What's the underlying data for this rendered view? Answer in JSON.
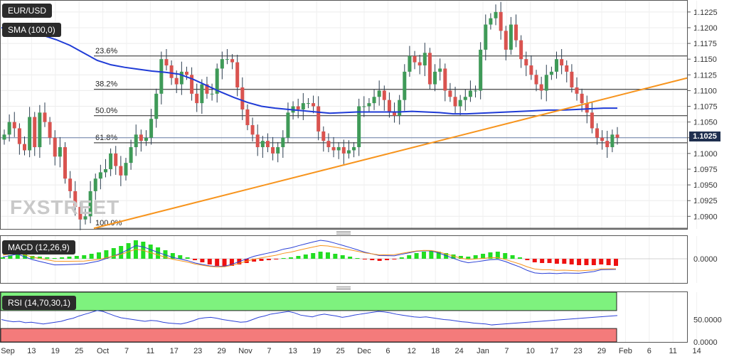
{
  "symbol": "EUR/USD",
  "sma_label": "SMA (100,0)",
  "macd_label": "MACD (12,26,9)",
  "rsi_label": "RSI (14,70,30,1)",
  "watermark": "FXSTREET",
  "current_price": "1.1025",
  "fib_levels": [
    {
      "label": "23.6%",
      "value": 1.1155
    },
    {
      "label": "38.2%",
      "value": 1.1102
    },
    {
      "label": "50.0%",
      "value": 1.106
    },
    {
      "label": "61.8%",
      "value": 1.1017
    },
    {
      "label": "100.0%",
      "value": 1.0881
    }
  ],
  "chart_data": [
    {
      "type": "candlestick",
      "title": "EUR/USD",
      "ylim": [
        1.088,
        1.1235
      ],
      "y_ticks": [
        "1.0900",
        "1.0925",
        "1.0950",
        "1.0975",
        "1.1000",
        "1.1025",
        "1.1050",
        "1.1075",
        "1.1100",
        "1.1125",
        "1.1150",
        "1.1175",
        "1.1200",
        "1.1225"
      ],
      "x_ticks": [
        "Sep",
        "13",
        "19",
        "25",
        "Oct",
        "7",
        "11",
        "17",
        "23",
        "29",
        "Nov",
        "7",
        "13",
        "19",
        "25",
        "Dec",
        "6",
        "12",
        "18",
        "24",
        "Jan",
        "7",
        "10",
        "17",
        "23",
        "29",
        "Feb",
        "6",
        "11",
        "14"
      ],
      "close": [
        1.103,
        1.105,
        1.104,
        1.1015,
        1.1005,
        1.1058,
        1.101,
        1.1065,
        1.105,
        1.1025,
        1.0995,
        1.101,
        1.096,
        1.094,
        1.0915,
        1.0895,
        1.09,
        1.094,
        1.096,
        1.097,
        1.0975,
        1.1,
        1.098,
        1.0965,
        1.0985,
        1.101,
        1.103,
        1.102,
        1.1025,
        1.1055,
        1.1095,
        1.115,
        1.114,
        1.112,
        1.111,
        1.113,
        1.1125,
        1.1095,
        1.108,
        1.111,
        1.1095,
        1.1095,
        1.1135,
        1.115,
        1.115,
        1.1145,
        1.1105,
        1.107,
        1.1045,
        1.103,
        1.101,
        1.102,
        1.101,
        1.1,
        1.101,
        1.1025,
        1.1065,
        1.1075,
        1.107,
        1.108,
        1.108,
        1.1075,
        1.1035,
        1.102,
        1.101,
        1.1005,
        1.101,
        1.1,
        1.1005,
        1.101,
        1.1075,
        1.1075,
        1.108,
        1.109,
        1.11,
        1.1085,
        1.1065,
        1.106,
        1.1085,
        1.113,
        1.1155,
        1.1145,
        1.114,
        1.116,
        1.111,
        1.113,
        1.1135,
        1.11,
        1.109,
        1.1075,
        1.1085,
        1.109,
        1.11,
        1.11,
        1.1165,
        1.1205,
        1.1215,
        1.1225,
        1.1195,
        1.1165,
        1.1205,
        1.118,
        1.115,
        1.114,
        1.1125,
        1.111,
        1.11,
        1.1125,
        1.113,
        1.115,
        1.114,
        1.113,
        1.1105,
        1.1095,
        1.108,
        1.1065,
        1.104,
        1.1025,
        1.102,
        1.101,
        1.103,
        1.1025
      ]
    },
    {
      "type": "line",
      "title": "SMA (100,0)",
      "y": [
        1.12,
        1.1197,
        1.1193,
        1.1188,
        1.1181,
        1.1172,
        1.116,
        1.1148,
        1.1141,
        1.1137,
        1.1134,
        1.1131,
        1.1129,
        1.1126,
        1.1118,
        1.1108,
        1.1098,
        1.1089,
        1.1081,
        1.1075,
        1.1072,
        1.107,
        1.1068,
        1.1066,
        1.1064,
        1.1065,
        1.1066,
        1.1066,
        1.1066,
        1.1066,
        1.1067,
        1.1066,
        1.1065,
        1.1063,
        1.1063,
        1.1064,
        1.1065,
        1.1066,
        1.1067,
        1.1068,
        1.1069,
        1.1069,
        1.107,
        1.1071,
        1.1072,
        1.1072
      ]
    },
    {
      "type": "line",
      "title": "Trend line",
      "x_from_to": [
        "Oct",
        "Feb 14"
      ],
      "y": [
        1.0881,
        1.112
      ]
    },
    {
      "type": "bar",
      "title": "MACD (12,26,9)",
      "y_ticks": [
        "0.0000"
      ],
      "histogram": [
        0.2,
        0.5,
        0.8,
        0.6,
        0.4,
        0.3,
        0.2,
        0.1,
        0.2,
        0.3,
        0.4,
        0.5,
        0.7,
        0.9,
        1.2,
        1.5,
        1.8,
        2.2,
        2.6,
        2.4,
        2.0,
        1.6,
        1.2,
        0.8,
        0.5,
        0.2,
        -0.2,
        -0.5,
        -0.8,
        -1.0,
        -1.1,
        -1.0,
        -0.8,
        -0.6,
        -0.4,
        -0.3,
        -0.2,
        -0.1,
        0.1,
        0.2,
        0.4,
        0.6,
        0.8,
        1.0,
        0.9,
        0.7,
        0.5,
        0.3,
        0.1,
        -0.1,
        -0.2,
        -0.3,
        -0.2,
        -0.1,
        0.2,
        0.5,
        0.8,
        1.0,
        1.1,
        1.0,
        0.8,
        0.6,
        0.4,
        0.3,
        0.5,
        0.7,
        0.9,
        1.0,
        0.8,
        0.5,
        0.2,
        -0.2,
        -0.5,
        -0.6,
        -0.6,
        -0.7,
        -0.7,
        -0.8,
        -0.9,
        -0.9,
        -0.9,
        -0.8,
        -0.9,
        -1.0
      ]
    },
    {
      "type": "line",
      "title": "RSI (14,70,30,1)",
      "y_ticks": [
        "50.0000",
        "0.0000"
      ],
      "y": [
        50,
        47,
        45,
        46,
        43,
        44,
        42,
        40,
        42,
        44,
        46,
        50,
        53,
        58,
        62,
        66,
        70,
        68,
        63,
        58,
        54,
        52,
        50,
        48,
        46,
        48,
        47,
        44,
        42,
        41,
        40,
        43,
        47,
        52,
        54,
        55,
        53,
        50,
        48,
        46,
        44,
        45,
        50,
        55,
        58,
        62,
        64,
        66,
        68,
        65,
        60,
        58,
        56,
        60,
        62,
        60,
        58,
        55,
        57,
        60,
        62,
        64,
        66,
        68,
        67,
        65,
        62,
        60,
        58,
        56,
        55,
        56,
        54,
        52,
        50,
        49,
        47,
        45,
        44,
        42,
        41,
        40,
        38,
        39,
        40,
        41,
        42,
        43,
        44,
        45,
        46,
        47,
        48,
        49,
        50,
        51,
        52,
        53,
        54,
        55,
        56,
        57,
        58,
        59
      ]
    }
  ]
}
